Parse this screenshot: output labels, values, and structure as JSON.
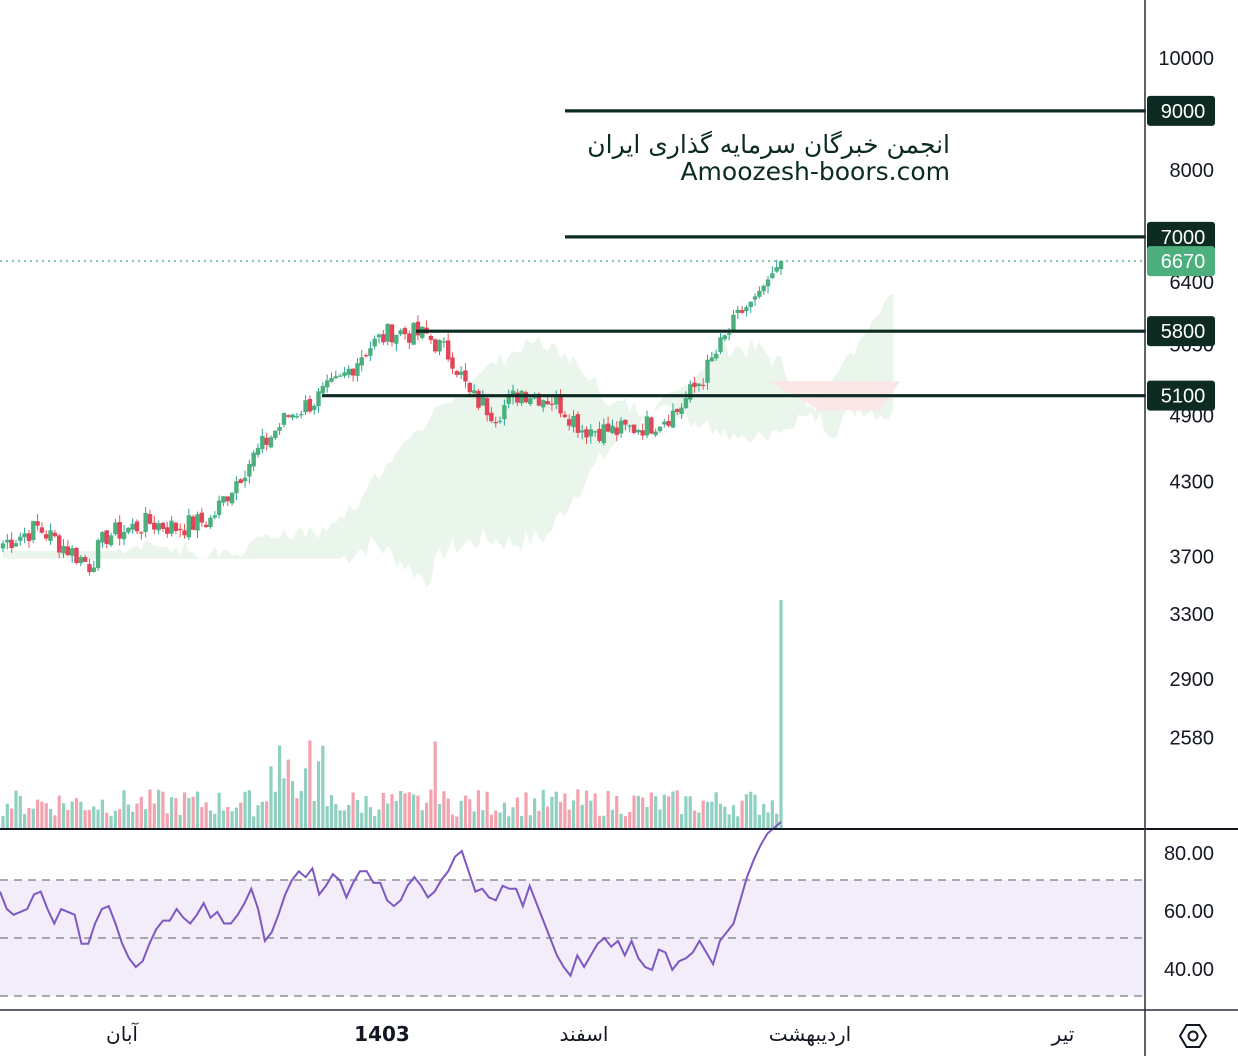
{
  "chart_data": [
    {
      "type": "candlestick",
      "price_axis": {
        "scale": "log",
        "ticks": [
          "10000",
          "8000",
          "6400",
          "5650",
          "4900",
          "4300",
          "3700",
          "3300",
          "2900",
          "2580"
        ]
      },
      "time_axis": {
        "labels": [
          "آبان",
          "1403",
          "اسفند",
          "اردیبهشت",
          "تیر"
        ]
      },
      "horizontal_levels": [
        {
          "value": 9000,
          "label": "9000"
        },
        {
          "value": 7000,
          "label": "7000"
        },
        {
          "value": 5800,
          "label": "5800"
        },
        {
          "value": 5100,
          "label": "5100"
        }
      ],
      "last_price": {
        "value": 6670,
        "label": "6670"
      },
      "candles_summary": {
        "start_close": 3800,
        "low": 3560,
        "peak_high": 6000,
        "range_low": 4640,
        "last_close": 6670
      },
      "indicators": [
        "ichimoku-cloud",
        "volume"
      ],
      "colors": {
        "up": "#26a69a",
        "down": "#ef5350",
        "up_body": "#4caf7d",
        "down_body": "#e0455a",
        "volume_up": "#8fd0c0",
        "volume_down": "#f2a3ae",
        "cloud_green": "#e8f4ea",
        "cloud_red": "#fce4e6",
        "level_line": "#0d2b22",
        "last_price_badge": "#4caf7d"
      }
    },
    {
      "type": "line",
      "indicator": "RSI",
      "y_ticks": [
        "80.00",
        "60.00",
        "40.00"
      ],
      "bands": [
        70,
        50,
        30
      ],
      "ylim": [
        26,
        90
      ],
      "values": [
        66,
        60,
        58,
        59,
        60,
        65,
        66,
        60,
        55,
        60,
        59,
        58,
        48,
        48,
        55,
        60,
        61,
        55,
        48,
        43,
        40,
        42,
        48,
        53,
        56,
        56,
        60,
        57,
        55,
        58,
        62,
        57,
        59,
        55,
        55,
        58,
        62,
        67,
        60,
        49,
        52,
        58,
        65,
        70,
        73,
        71,
        74,
        65,
        68,
        72,
        70,
        64,
        69,
        73,
        73,
        69,
        69,
        63,
        61,
        63,
        68,
        71,
        68,
        64,
        66,
        70,
        73,
        78,
        80,
        73,
        66,
        67,
        64,
        63,
        68,
        67,
        67,
        61,
        68,
        62,
        56,
        50,
        44,
        40,
        37,
        44,
        40,
        44,
        48,
        50,
        47,
        49,
        44,
        49,
        43,
        40,
        39,
        46,
        45,
        39,
        42,
        43,
        45,
        49,
        45,
        41,
        49,
        52,
        55,
        63,
        71,
        77,
        82,
        86,
        88,
        90
      ],
      "color": "#7e57c2"
    }
  ],
  "watermark": {
    "line1": "انجمن خبرگان سرمایه گذاری ایران",
    "line2": "Amoozesh-boors.com"
  },
  "icons": {
    "settings": "hexagon-settings-icon"
  }
}
